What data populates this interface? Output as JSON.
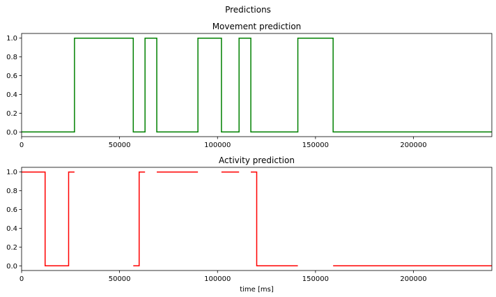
{
  "figure": {
    "suptitle": "Predictions"
  },
  "chart_data": [
    {
      "type": "line",
      "title": "Movement prediction",
      "xlabel": "",
      "ylabel": "",
      "xlim": [
        0,
        240000
      ],
      "ylim": [
        -0.05,
        1.05
      ],
      "xticks": [
        0,
        50000,
        100000,
        150000,
        200000
      ],
      "yticks": [
        0.0,
        0.2,
        0.4,
        0.6,
        0.8,
        1.0
      ],
      "xtick_labels": [
        "0",
        "50000",
        "100000",
        "150000",
        "200000"
      ],
      "ytick_labels": [
        "0.0",
        "0.2",
        "0.4",
        "0.6",
        "0.8",
        "1.0"
      ],
      "grid": false,
      "series": [
        {
          "color": "#008000",
          "x": [
            0,
            27000,
            27000,
            57000,
            57000,
            63000,
            63000,
            69000,
            69000,
            90000,
            90000,
            102000,
            102000,
            111000,
            111000,
            117000,
            117000,
            141000,
            141000,
            159000,
            159000,
            240000
          ],
          "y": [
            0,
            0,
            1,
            1,
            0,
            0,
            1,
            1,
            0,
            0,
            1,
            1,
            0,
            0,
            1,
            1,
            0,
            0,
            1,
            1,
            0,
            0
          ]
        }
      ]
    },
    {
      "type": "line",
      "title": "Activity prediction",
      "xlabel": "time [ms]",
      "ylabel": "",
      "xlim": [
        0,
        240000
      ],
      "ylim": [
        -0.05,
        1.05
      ],
      "xticks": [
        0,
        50000,
        100000,
        150000,
        200000
      ],
      "yticks": [
        0.0,
        0.2,
        0.4,
        0.6,
        0.8,
        1.0
      ],
      "xtick_labels": [
        "0",
        "50000",
        "100000",
        "150000",
        "200000"
      ],
      "ytick_labels": [
        "0.0",
        "0.2",
        "0.4",
        "0.6",
        "0.8",
        "1.0"
      ],
      "grid": false,
      "series": [
        {
          "color": "#ff0000",
          "x": [
            0,
            12000,
            12000,
            24000,
            24000,
            27000,
            null,
            57000,
            60000,
            60000,
            63000,
            null,
            69000,
            90000,
            null,
            102000,
            111000,
            null,
            117000,
            120000,
            120000,
            141000,
            null,
            159000,
            240000
          ],
          "y": [
            1,
            1,
            0,
            0,
            1,
            1,
            null,
            0,
            0,
            1,
            1,
            null,
            1,
            1,
            null,
            1,
            1,
            null,
            1,
            1,
            0,
            0,
            null,
            0,
            0
          ]
        }
      ]
    }
  ]
}
